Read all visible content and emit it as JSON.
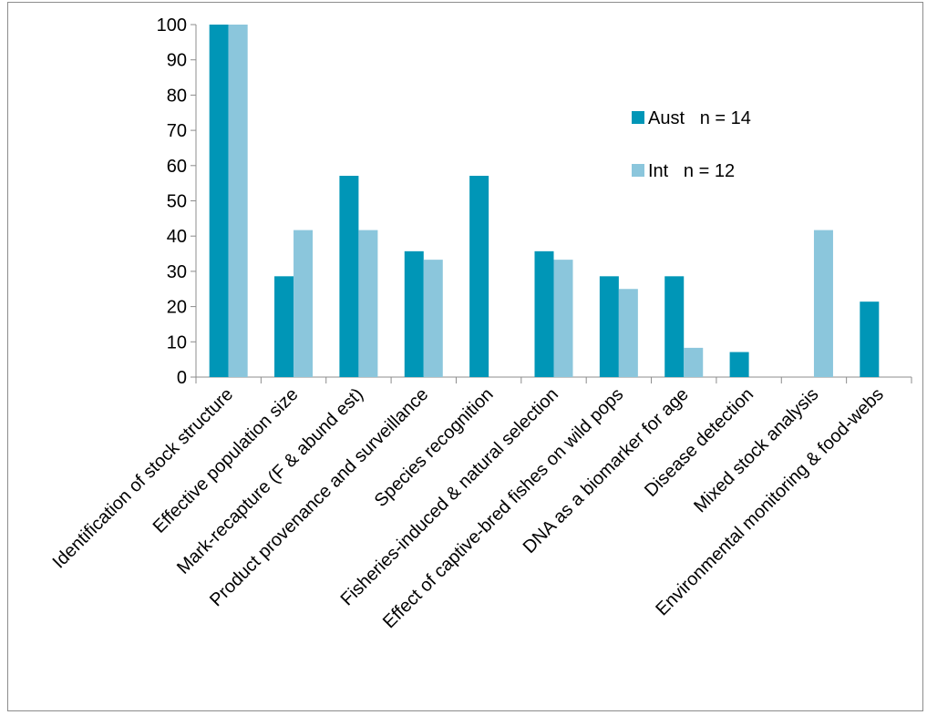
{
  "chart_data": {
    "type": "bar",
    "categories": [
      "Identification of stock structure",
      "Effective population size",
      "Mark-recapture (F & abund est)",
      "Product provenance and surveillance",
      "Species recognition",
      "Fisheries-induced & natural selection",
      "Effect of captive-bred fishes on wild pops",
      "DNA as a biomarker for age",
      "Disease detection",
      "Mixed stock analysis",
      "Environmental monitoring & food-webs"
    ],
    "series": [
      {
        "name": "Aust   n = 14",
        "color": "#0096b7",
        "values": [
          100,
          28.6,
          57.1,
          35.7,
          57.1,
          35.7,
          28.6,
          28.6,
          7.1,
          0,
          21.4
        ]
      },
      {
        "name": "Int   n = 12",
        "color": "#8bc6dc",
        "values": [
          100,
          41.7,
          41.7,
          33.3,
          0,
          33.3,
          25.0,
          8.3,
          0,
          41.7,
          0
        ]
      }
    ],
    "ylim": [
      0,
      100
    ],
    "yticks": [
      "0",
      "10",
      "20",
      "30",
      "40",
      "50",
      "60",
      "70",
      "80",
      "90",
      "100"
    ],
    "grid": false,
    "legend_position": "upper-right"
  }
}
